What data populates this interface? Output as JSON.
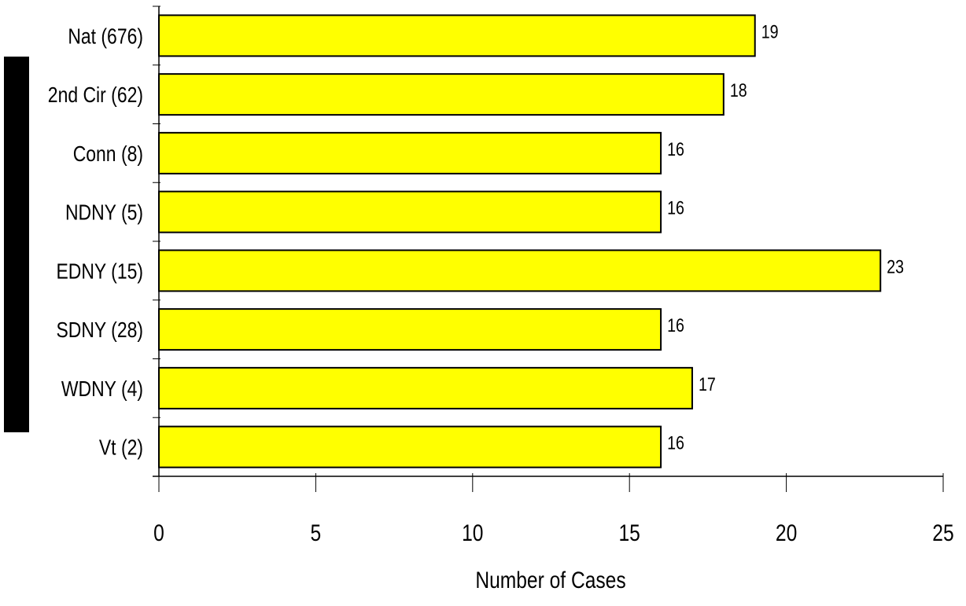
{
  "chart_data": {
    "type": "bar",
    "orientation": "horizontal",
    "categories": [
      "Nat (676)",
      "2nd Cir (62)",
      "Conn (8)",
      "NDNY (5)",
      "EDNY (15)",
      "SDNY (28)",
      "WDNY (4)",
      "Vt (2)"
    ],
    "values": [
      19,
      18,
      16,
      16,
      23,
      16,
      17,
      16
    ],
    "data_labels": [
      "19",
      "18",
      "16",
      "16",
      "23",
      "16",
      "17",
      "16"
    ],
    "title": "",
    "xlabel": "Number of Cases",
    "ylabel": "",
    "xlim": [
      0,
      25
    ],
    "x_ticks": [
      "0",
      "5",
      "10",
      "15",
      "20",
      "25"
    ],
    "grid": false,
    "legend": "none",
    "colors": {
      "bar_fill": "#FFFF00",
      "bar_stroke": "#000000",
      "axis": "#000000",
      "text": "#000000",
      "left_block": "#000000"
    }
  }
}
